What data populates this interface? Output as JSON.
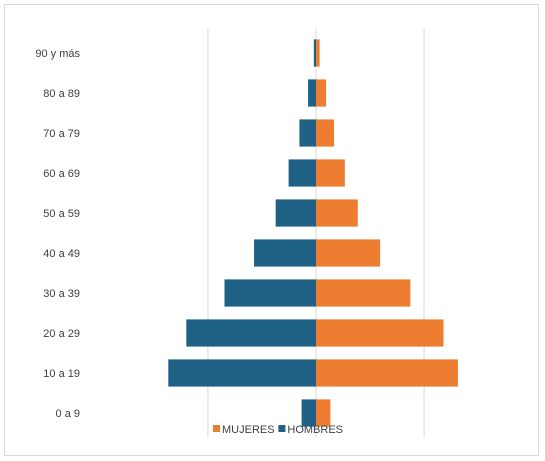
{
  "chart_data": {
    "type": "bar",
    "orientation": "horizontal",
    "layout": "population-pyramid",
    "categories": [
      "0 a 9",
      "10 a 19",
      "20 a 29",
      "30 a 39",
      "40 a 49",
      "50 a 59",
      "60 a 69",
      "70 a 79",
      "80 a 89",
      "90 y más"
    ],
    "series": [
      {
        "name": "HOMBRES",
        "side": "left",
        "color": "#1f6285",
        "values": [
          2.0,
          20.5,
          18.0,
          12.7,
          8.6,
          5.6,
          3.8,
          2.3,
          1.1,
          0.3
        ]
      },
      {
        "name": "MUJERES",
        "side": "right",
        "color": "#ed7d31",
        "values": [
          2.0,
          19.7,
          17.7,
          13.1,
          8.9,
          5.8,
          4.0,
          2.5,
          1.4,
          0.5
        ]
      }
    ],
    "xlim": [
      -30,
      30
    ],
    "gridlines_x": [
      -15,
      0,
      15
    ],
    "grid": true,
    "legend_position": "bottom",
    "legend_order": [
      "MUJERES",
      "HOMBRES"
    ],
    "title": "",
    "xlabel": "",
    "ylabel": ""
  }
}
